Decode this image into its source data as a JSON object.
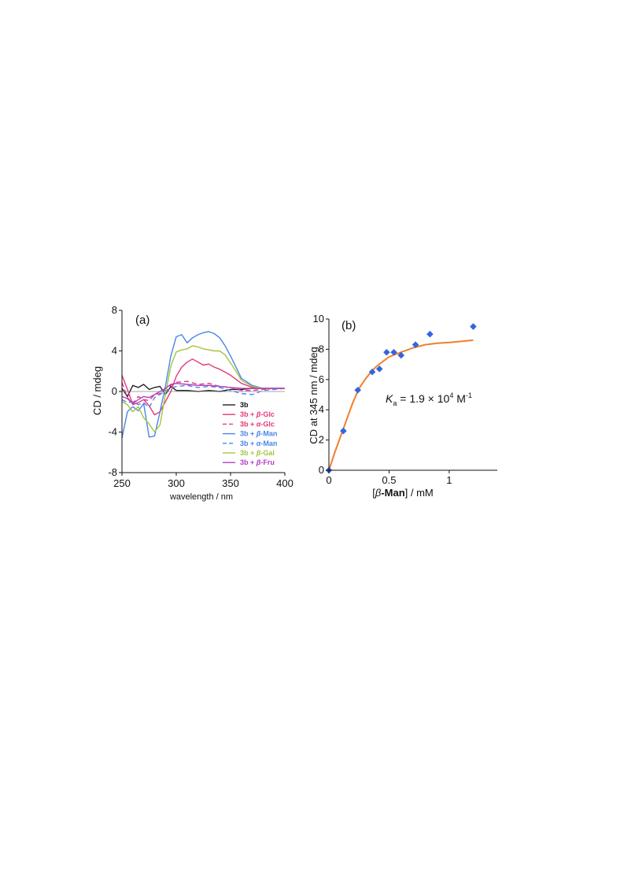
{
  "chart_data": [
    {
      "panel": "(a)",
      "type": "line",
      "xlabel": "wavelength / nm",
      "ylabel": "CD / mdeg",
      "xlim": [
        250,
        400
      ],
      "ylim": [
        -8,
        8
      ],
      "xticks": [
        250,
        300,
        350,
        400
      ],
      "yticks": [
        -8,
        -4,
        0,
        4,
        8
      ],
      "legend_position": "bottom-right",
      "series": [
        {
          "name": "3b",
          "label_base": "3b",
          "label_suffix": "",
          "color": "#222222",
          "dash": "solid",
          "x": [
            250,
            255,
            260,
            265,
            270,
            275,
            280,
            285,
            290,
            295,
            300,
            310,
            320,
            330,
            340,
            350,
            360,
            370,
            380,
            390,
            400
          ],
          "y": [
            0.3,
            -0.5,
            0.6,
            0.4,
            0.7,
            0.2,
            0.4,
            0.5,
            -0.3,
            0.5,
            0.1,
            0.1,
            0.0,
            0.1,
            0.0,
            0.2,
            0.2,
            0.3,
            0.3,
            0.3,
            0.3
          ]
        },
        {
          "name": "3b + β-Glc",
          "label_base": "3b + ",
          "label_greek": "β",
          "label_suffix": "-Glc",
          "color": "#e8357a",
          "dash": "solid",
          "x": [
            250,
            255,
            260,
            265,
            270,
            275,
            280,
            285,
            290,
            295,
            300,
            305,
            310,
            315,
            320,
            325,
            330,
            335,
            340,
            345,
            350,
            355,
            360,
            370,
            380,
            390,
            400
          ],
          "y": [
            1.6,
            0.2,
            -1.3,
            -1.1,
            -0.8,
            -1.4,
            -2.3,
            -2.0,
            -1.0,
            0.0,
            1.5,
            2.4,
            2.9,
            3.2,
            2.9,
            2.6,
            2.7,
            2.4,
            2.2,
            1.9,
            1.6,
            1.2,
            0.8,
            0.4,
            0.3,
            0.3,
            0.3
          ]
        },
        {
          "name": "3b + α-Glc",
          "label_base": "3b + ",
          "label_greek": "α",
          "label_suffix": "-Glc",
          "color": "#e8357a",
          "dash": "dashed",
          "x": [
            250,
            255,
            260,
            265,
            270,
            275,
            280,
            285,
            290,
            295,
            300,
            310,
            320,
            330,
            340,
            350,
            360,
            370,
            380,
            390,
            400
          ],
          "y": [
            0.9,
            -0.6,
            -1.2,
            -0.5,
            -0.8,
            -0.9,
            -0.3,
            -0.2,
            0.3,
            0.6,
            0.9,
            1.0,
            0.7,
            0.8,
            0.5,
            0.4,
            0.1,
            0.1,
            0.2,
            0.3,
            0.3
          ]
        },
        {
          "name": "3b + β-Man",
          "label_base": "3b + ",
          "label_greek": "β",
          "label_suffix": "-Man",
          "color": "#4a86e8",
          "dash": "solid",
          "x": [
            250,
            255,
            260,
            265,
            270,
            275,
            280,
            285,
            290,
            295,
            300,
            305,
            310,
            315,
            320,
            325,
            330,
            335,
            340,
            345,
            350,
            355,
            360,
            370,
            380,
            390,
            400
          ],
          "y": [
            -4.6,
            -2.0,
            -1.5,
            -1.9,
            -1.2,
            -4.5,
            -4.4,
            -2.0,
            0.5,
            3.5,
            5.4,
            5.6,
            4.8,
            5.3,
            5.6,
            5.8,
            5.9,
            5.7,
            5.3,
            4.5,
            3.5,
            2.4,
            1.3,
            0.6,
            0.3,
            0.3,
            0.3
          ]
        },
        {
          "name": "3b + α-Man",
          "label_base": "3b + ",
          "label_greek": "α",
          "label_suffix": "-Man",
          "color": "#4a86e8",
          "dash": "dashed",
          "x": [
            250,
            255,
            260,
            265,
            270,
            275,
            280,
            285,
            290,
            295,
            300,
            310,
            320,
            330,
            340,
            350,
            360,
            370,
            380,
            390,
            400
          ],
          "y": [
            -0.8,
            -1.1,
            -1.0,
            -1.3,
            -1.1,
            -1.6,
            -0.6,
            -0.3,
            0.1,
            0.3,
            0.5,
            0.6,
            0.4,
            0.5,
            0.4,
            0.1,
            -0.2,
            -0.3,
            0.1,
            0.2,
            0.3
          ]
        },
        {
          "name": "3b + β-Gal",
          "label_base": "3b + ",
          "label_greek": "β",
          "label_suffix": "-Gal",
          "color": "#a6c43c",
          "dash": "solid",
          "x": [
            250,
            255,
            260,
            265,
            270,
            275,
            280,
            285,
            290,
            295,
            300,
            305,
            310,
            315,
            320,
            325,
            330,
            335,
            340,
            345,
            350,
            355,
            360,
            370,
            380,
            390,
            400
          ],
          "y": [
            -1.0,
            -1.3,
            -2.0,
            -1.5,
            -2.6,
            -3.2,
            -4.0,
            -3.3,
            -0.3,
            2.5,
            3.9,
            4.1,
            4.2,
            4.5,
            4.4,
            4.2,
            4.1,
            4.0,
            4.0,
            3.6,
            2.8,
            2.0,
            1.1,
            0.5,
            0.3,
            0.3,
            0.3
          ]
        },
        {
          "name": "3b + β-Fru",
          "label_base": "3b + ",
          "label_greek": "β",
          "label_suffix": "-Fru",
          "color": "#b33cc4",
          "dash": "solid",
          "x": [
            250,
            255,
            260,
            265,
            270,
            275,
            280,
            285,
            290,
            295,
            300,
            310,
            320,
            330,
            340,
            350,
            360,
            370,
            380,
            390,
            400
          ],
          "y": [
            -0.5,
            -0.7,
            -1.2,
            -0.8,
            -0.5,
            -0.6,
            -0.3,
            0.0,
            0.3,
            0.7,
            0.8,
            0.7,
            0.6,
            0.6,
            0.5,
            0.4,
            0.3,
            0.3,
            0.3,
            0.3,
            0.3
          ]
        }
      ]
    },
    {
      "panel": "(b)",
      "type": "scatter",
      "xlabel_parts": {
        "open": "[",
        "greek": "β",
        "dash": "-",
        "bold": "Man",
        "close": "] / mM"
      },
      "ylabel": "CD at 345 nm / mdeg",
      "xlim": [
        0,
        1.4
      ],
      "ylim": [
        0,
        10
      ],
      "xticks": [
        "0",
        "0.5",
        "1"
      ],
      "xtick_values": [
        0,
        0.5,
        1
      ],
      "yticks": [
        0,
        2,
        4,
        6,
        8,
        10
      ],
      "annotation": {
        "sym": "K",
        "sub": "a",
        "text": " = 1.9 × 10",
        "sup1": "4",
        "unit": " M",
        "sup2": "-1"
      },
      "series": [
        {
          "name": "data",
          "marker": "diamond",
          "color": "#3366dd",
          "x": [
            0,
            0.12,
            0.24,
            0.36,
            0.42,
            0.48,
            0.54,
            0.6,
            0.72,
            0.84,
            1.2
          ],
          "y": [
            0,
            2.6,
            5.3,
            6.5,
            6.7,
            7.8,
            7.8,
            7.6,
            8.3,
            9.0,
            9.5
          ]
        },
        {
          "name": "fit",
          "marker": "none",
          "color": "#f07f2a",
          "x": [
            0,
            0.05,
            0.1,
            0.15,
            0.2,
            0.25,
            0.3,
            0.35,
            0.4,
            0.45,
            0.5,
            0.6,
            0.7,
            0.8,
            0.9,
            1.0,
            1.1,
            1.2
          ],
          "y": [
            0,
            1.2,
            2.3,
            3.4,
            4.5,
            5.4,
            6.0,
            6.5,
            6.9,
            7.2,
            7.5,
            7.8,
            8.1,
            8.3,
            8.4,
            8.45,
            8.52,
            8.6
          ]
        }
      ]
    }
  ]
}
